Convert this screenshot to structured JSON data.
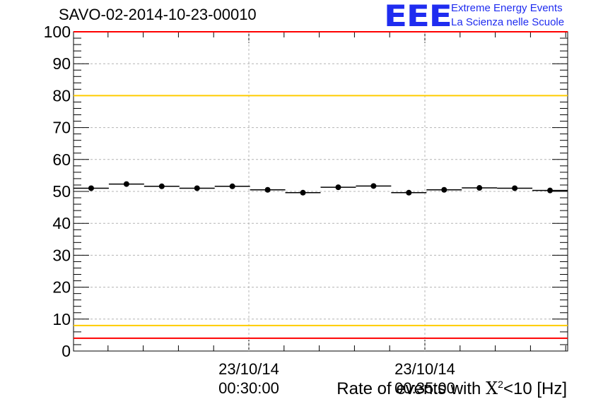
{
  "chart_data": {
    "type": "scatter",
    "title": "SAVO-02-2014-10-23-00010",
    "xlabel": "Rate of events with",
    "xlabel_symbol": "X",
    "xlabel_exponent": "2",
    "xlabel_suffix": "<10 [Hz]",
    "ylabel": "",
    "ylim": [
      0,
      100
    ],
    "y_ticks": [
      "0",
      "10",
      "20",
      "30",
      "40",
      "50",
      "60",
      "70",
      "80",
      "90",
      "100"
    ],
    "x_ticks": [
      {
        "date": "23/10/14",
        "time": "00:30:00"
      },
      {
        "date": "23/10/14",
        "time": "00:35:00"
      }
    ],
    "points": [
      51.0,
      52.3,
      51.6,
      51.0,
      51.6,
      50.5,
      49.6,
      51.3,
      51.7,
      49.6,
      50.5,
      51.1,
      51.0,
      50.3
    ],
    "reference_lines": [
      {
        "value": 100,
        "color": "#ff0000"
      },
      {
        "value": 80,
        "color": "#ffcc00"
      },
      {
        "value": 8,
        "color": "#ffcc00"
      },
      {
        "value": 4,
        "color": "#ff0000"
      }
    ],
    "grid": true
  },
  "logo": {
    "text": "EEE",
    "line1": "Extreme Energy Events",
    "line2": "La Scienza nelle Scuole",
    "color": "#1f2cf0"
  }
}
